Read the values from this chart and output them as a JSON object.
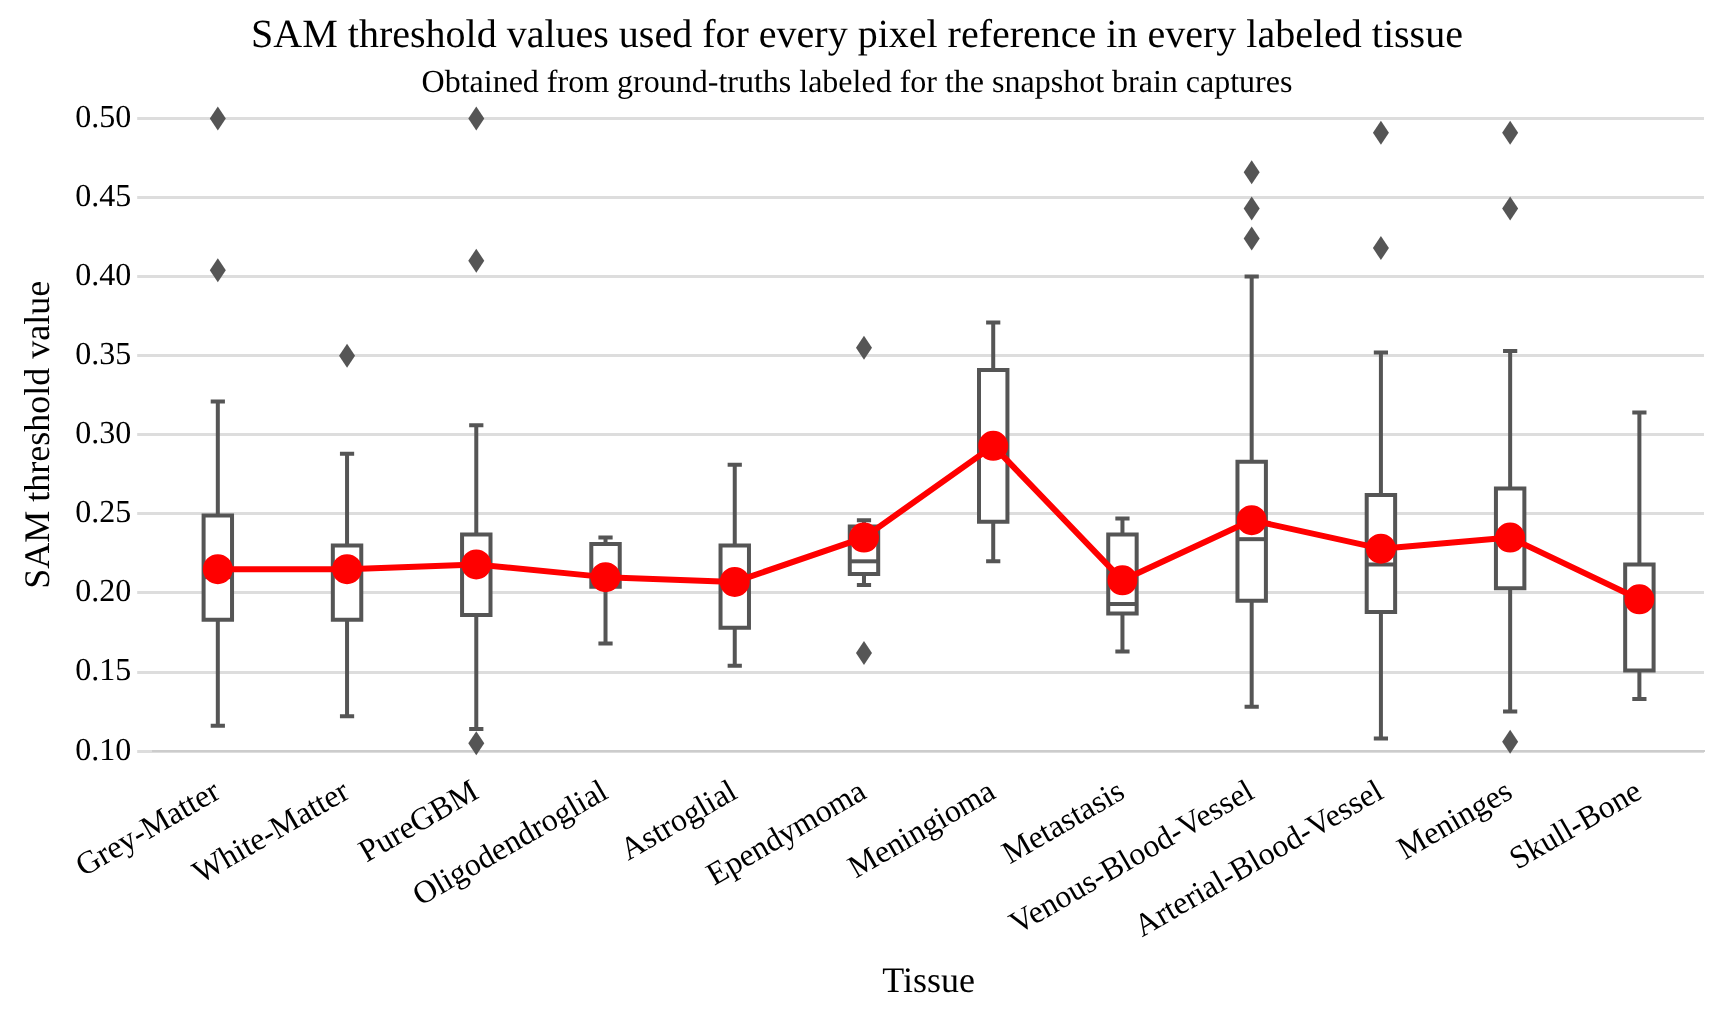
{
  "chart_data": {
    "type": "box",
    "title": "SAM threshold values used for every pixel reference in every labeled tissue",
    "subtitle": "Obtained from ground-truths labeled for the snapshot brain captures",
    "xlabel": "Tissue",
    "ylabel": "SAM threshold value",
    "categories": [
      "Grey-Matter",
      "White-Matter",
      "PureGBM",
      "Oligodendroglial",
      "Astroglial",
      "Ependymoma",
      "Meningioma",
      "Metastasis",
      "Venous-Blood-Vessel",
      "Arterial-Blood-Vessel",
      "Meninges",
      "Skull-Bone"
    ],
    "boxes": [
      {
        "low": 0.116,
        "q1": 0.183,
        "median": 0.21,
        "q3": 0.249,
        "high": 0.321,
        "outliers": [
          0.404,
          0.5
        ]
      },
      {
        "low": 0.122,
        "q1": 0.183,
        "median": 0.215,
        "q3": 0.23,
        "high": 0.288,
        "outliers": [
          0.35
        ]
      },
      {
        "low": 0.114,
        "q1": 0.186,
        "median": 0.218,
        "q3": 0.237,
        "high": 0.306,
        "outliers": [
          0.105,
          0.41,
          0.5
        ]
      },
      {
        "low": 0.168,
        "q1": 0.204,
        "median": 0.213,
        "q3": 0.231,
        "high": 0.235
      },
      {
        "low": 0.154,
        "q1": 0.178,
        "median": 0.207,
        "q3": 0.23,
        "high": 0.281
      },
      {
        "low": 0.205,
        "q1": 0.212,
        "median": 0.22,
        "q3": 0.242,
        "high": 0.246,
        "outliers": [
          0.162,
          0.355
        ]
      },
      {
        "low": 0.22,
        "q1": 0.245,
        "median": 0.29,
        "q3": 0.341,
        "high": 0.371
      },
      {
        "low": 0.163,
        "q1": 0.187,
        "median": 0.193,
        "q3": 0.237,
        "high": 0.247
      },
      {
        "low": 0.128,
        "q1": 0.195,
        "median": 0.234,
        "q3": 0.283,
        "high": 0.4,
        "outliers": [
          0.424,
          0.443,
          0.466
        ]
      },
      {
        "low": 0.108,
        "q1": 0.188,
        "median": 0.218,
        "q3": 0.262,
        "high": 0.352,
        "outliers": [
          0.418,
          0.491
        ]
      },
      {
        "low": 0.125,
        "q1": 0.203,
        "median": 0.238,
        "q3": 0.266,
        "high": 0.353,
        "outliers": [
          0.106,
          0.443,
          0.491
        ]
      },
      {
        "low": 0.133,
        "q1": 0.151,
        "median": 0.195,
        "q3": 0.218,
        "high": 0.314
      }
    ],
    "series": [
      {
        "type": "line",
        "color": "#ff0000",
        "marker": "circle",
        "values": [
          0.215,
          0.215,
          0.218,
          0.21,
          0.207,
          0.235,
          0.293,
          0.208,
          0.246,
          0.228,
          0.235,
          0.196
        ]
      }
    ],
    "ylim": [
      0.1,
      0.5
    ],
    "yticks": [
      {
        "value": 0.1,
        "label": "0.10"
      },
      0.15,
      {
        "value": 0.2,
        "label": "0.20"
      },
      0.25,
      {
        "value": 0.3,
        "label": "0.30"
      },
      0.35,
      {
        "value": 0.4,
        "label": "0.40"
      },
      0.45,
      {
        "value": 0.5,
        "label": "0.50"
      }
    ],
    "grid": "y",
    "legend": false
  }
}
